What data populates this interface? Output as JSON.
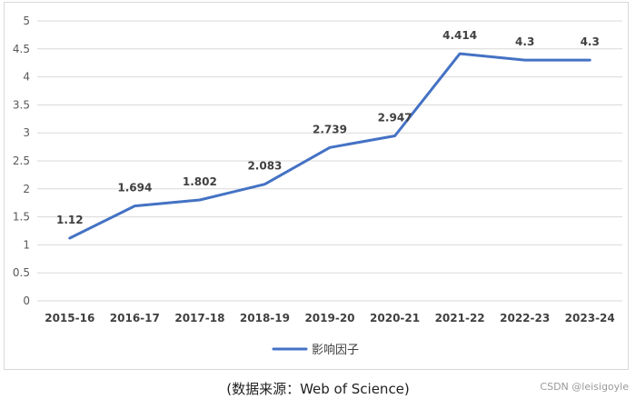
{
  "chart_data": {
    "type": "line",
    "categories": [
      "2015-16",
      "2016-17",
      "2017-18",
      "2018-19",
      "2019-20",
      "2020-21",
      "2021-22",
      "2022-23",
      "2023-24"
    ],
    "series": [
      {
        "name": "影响因子",
        "values": [
          1.12,
          1.694,
          1.802,
          2.083,
          2.739,
          2.947,
          4.414,
          4.3,
          4.3
        ]
      }
    ],
    "data_labels": [
      "1.12",
      "1.694",
      "1.802",
      "2.083",
      "2.739",
      "2.947",
      "4.414",
      "4.3",
      "4.3"
    ],
    "ylim": [
      0,
      5
    ],
    "yticks": [
      0,
      0.5,
      1,
      1.5,
      2,
      2.5,
      3,
      3.5,
      4,
      4.5,
      5
    ],
    "ytick_labels": [
      "0",
      "0.5",
      "1",
      "1.5",
      "2",
      "2.5",
      "3",
      "3.5",
      "4",
      "4.5",
      "5"
    ],
    "grid": true,
    "legend_position": "bottom",
    "line_color": "#4472C4",
    "grid_color": "#d9d9d9"
  },
  "caption": "(数据来源：Web of Science)",
  "watermark": "CSDN @leisigoyle"
}
